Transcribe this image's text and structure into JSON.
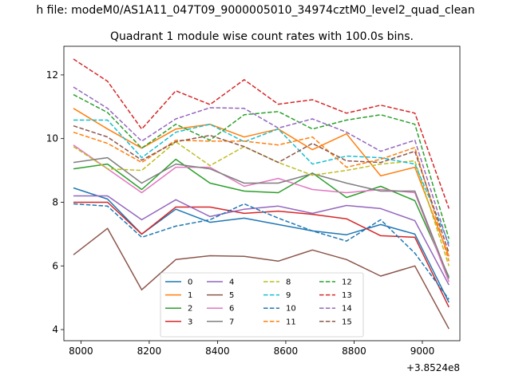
{
  "chart_data": {
    "type": "line",
    "suptitle": "h file: modeM0/AS1A11_047T09_9000005010_34974cztM0_level2_quad_clean",
    "title": "Quadrant 1 module wise count rates with 100.0s bins.",
    "xlabel": "",
    "ylabel": "",
    "x_offset_label": "+3.8524e8",
    "xlim": [
      7950,
      9110
    ],
    "ylim": [
      3.65,
      12.9
    ],
    "xticks": [
      8000,
      8200,
      8400,
      8600,
      8800,
      9000
    ],
    "yticks": [
      4,
      6,
      8,
      10,
      12
    ],
    "grid": false,
    "legend_position": "lower-center",
    "legend_columns": 4,
    "x": [
      7978,
      8078,
      8178,
      8278,
      8378,
      8478,
      8578,
      8678,
      8778,
      8878,
      8978,
      9078
    ],
    "series": [
      {
        "name": "0",
        "color": "#1f77b4",
        "dash": false,
        "values": [
          8.45,
          8.1,
          7.0,
          7.78,
          7.37,
          7.5,
          7.3,
          7.1,
          6.98,
          7.3,
          7.0,
          4.85
        ]
      },
      {
        "name": "1",
        "color": "#ff7f0e",
        "dash": false,
        "values": [
          10.95,
          10.3,
          9.7,
          10.3,
          10.45,
          10.05,
          10.3,
          9.65,
          10.15,
          8.83,
          9.1,
          6.3
        ]
      },
      {
        "name": "2",
        "color": "#2ca02c",
        "dash": false,
        "values": [
          9.05,
          9.2,
          8.4,
          9.35,
          8.6,
          8.35,
          8.3,
          8.92,
          8.15,
          8.5,
          8.05,
          5.65
        ]
      },
      {
        "name": "3",
        "color": "#d62728",
        "dash": false,
        "values": [
          8.0,
          8.0,
          7.0,
          7.85,
          7.85,
          7.65,
          7.72,
          7.62,
          7.48,
          6.95,
          6.9,
          4.7
        ]
      },
      {
        "name": "4",
        "color": "#9467bd",
        "dash": false,
        "values": [
          8.2,
          8.2,
          7.45,
          8.08,
          7.55,
          7.78,
          7.88,
          7.65,
          7.9,
          7.8,
          7.42,
          5.4
        ]
      },
      {
        "name": "5",
        "color": "#8c564b",
        "dash": false,
        "values": [
          6.35,
          7.18,
          5.25,
          6.2,
          6.32,
          6.3,
          6.15,
          6.5,
          6.2,
          5.68,
          6.0,
          4.02
        ]
      },
      {
        "name": "6",
        "color": "#e377c2",
        "dash": false,
        "values": [
          9.8,
          9.05,
          8.3,
          9.1,
          9.1,
          8.5,
          8.75,
          8.4,
          8.3,
          8.4,
          8.3,
          5.5
        ]
      },
      {
        "name": "7",
        "color": "#7f7f7f",
        "dash": false,
        "values": [
          9.25,
          9.4,
          8.6,
          9.2,
          9.05,
          8.6,
          8.6,
          8.9,
          8.6,
          8.35,
          8.35,
          5.6
        ]
      },
      {
        "name": "8",
        "color": "#bcbd22",
        "dash": true,
        "values": [
          9.75,
          9.05,
          9.0,
          9.9,
          9.15,
          9.75,
          9.25,
          8.85,
          9.0,
          9.2,
          9.3,
          6.0
        ]
      },
      {
        "name": "9",
        "color": "#17becf",
        "dash": true,
        "values": [
          10.58,
          10.58,
          9.4,
          10.2,
          10.45,
          9.9,
          10.3,
          9.2,
          9.45,
          9.4,
          9.2,
          6.7
        ]
      },
      {
        "name": "10",
        "color": "#1f77b4",
        "dash": true,
        "values": [
          7.95,
          7.88,
          6.9,
          7.25,
          7.45,
          7.95,
          7.5,
          7.1,
          6.78,
          7.45,
          6.4,
          4.95
        ]
      },
      {
        "name": "11",
        "color": "#ff7f0e",
        "dash": true,
        "values": [
          10.2,
          9.85,
          9.25,
          9.95,
          9.92,
          9.92,
          9.8,
          10.05,
          9.1,
          9.35,
          9.72,
          6.15
        ]
      },
      {
        "name": "12",
        "color": "#2ca02c",
        "dash": true,
        "values": [
          11.38,
          10.82,
          9.7,
          10.45,
          9.95,
          10.75,
          10.85,
          10.3,
          10.58,
          10.75,
          10.45,
          6.85
        ]
      },
      {
        "name": "13",
        "color": "#d62728",
        "dash": true,
        "values": [
          12.5,
          11.8,
          10.3,
          11.5,
          11.07,
          11.85,
          11.08,
          11.22,
          10.8,
          11.05,
          10.8,
          7.8
        ]
      },
      {
        "name": "14",
        "color": "#9467bd",
        "dash": true,
        "values": [
          11.62,
          10.95,
          9.92,
          10.62,
          10.97,
          10.95,
          10.33,
          10.62,
          10.2,
          9.6,
          9.95,
          6.6
        ]
      },
      {
        "name": "15",
        "color": "#8c564b",
        "dash": true,
        "values": [
          10.4,
          10.05,
          9.32,
          9.9,
          10.1,
          9.75,
          9.25,
          9.85,
          9.3,
          9.25,
          9.6,
          6.4
        ]
      }
    ]
  }
}
